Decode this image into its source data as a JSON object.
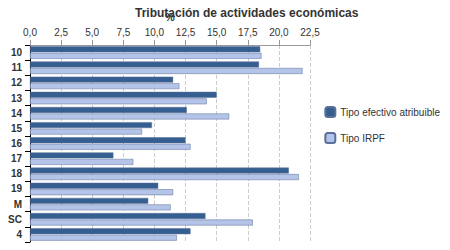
{
  "chart_data": {
    "type": "bar",
    "orientation": "horizontal",
    "title": "Tributación de actividades económicas",
    "x_label": "%",
    "categories": [
      "10",
      "11",
      "12",
      "13",
      "14",
      "15",
      "16",
      "17",
      "18",
      "19",
      "M",
      "SC",
      "4"
    ],
    "series": [
      {
        "name": "Tipo efectivo atribuible",
        "color": "#365f91",
        "values": [
          18.5,
          18.4,
          11.5,
          15.0,
          12.6,
          9.8,
          12.5,
          6.7,
          20.8,
          10.3,
          9.5,
          14.1,
          12.9
        ]
      },
      {
        "name": "Tipo IRPF",
        "color": "#b4c4e8",
        "values": [
          18.6,
          21.9,
          12.0,
          14.2,
          16.0,
          9.0,
          12.9,
          8.3,
          21.6,
          11.5,
          11.3,
          17.9,
          11.8
        ]
      }
    ],
    "xlim": [
      0,
      22.5
    ],
    "xticks": [
      {
        "value": 0,
        "label": "0,0"
      },
      {
        "value": 2.5,
        "label": "2,5"
      },
      {
        "value": 5,
        "label": "5,0"
      },
      {
        "value": 7.5,
        "label": "7,5"
      },
      {
        "value": 10,
        "label": "10,0"
      },
      {
        "value": 12.5,
        "label": "12,5"
      },
      {
        "value": 15,
        "label": "15,0"
      },
      {
        "value": 17.5,
        "label": "17,5"
      },
      {
        "value": 20,
        "label": "20,0"
      },
      {
        "value": 22.5,
        "label": "22,5"
      }
    ],
    "grid": true,
    "legend": "right"
  }
}
